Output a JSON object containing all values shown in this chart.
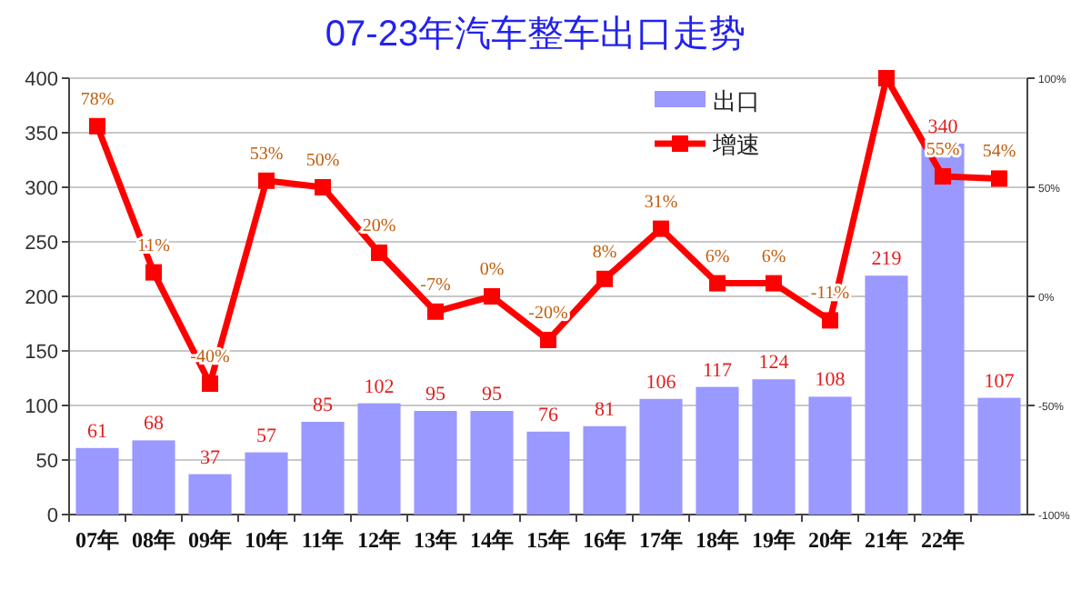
{
  "chart_data": {
    "type": "bar",
    "title": "07-23年汽车整车出口走势",
    "categories": [
      "07年",
      "08年",
      "09年",
      "10年",
      "11年",
      "12年",
      "13年",
      "14年",
      "15年",
      "16年",
      "17年",
      "18年",
      "19年",
      "20年",
      "21年",
      "22年",
      null
    ],
    "series": [
      {
        "name": "出口",
        "color": "#9999ff",
        "values": [
          61,
          68,
          37,
          57,
          85,
          102,
          95,
          95,
          76,
          81,
          106,
          117,
          124,
          108,
          219,
          340,
          107
        ],
        "value_labels": [
          "61",
          "68",
          "37",
          "57",
          "85",
          "102",
          "95",
          "95",
          "76",
          "81",
          "106",
          "117",
          "124",
          "108",
          "219",
          "340",
          "107"
        ]
      },
      {
        "name": "增速",
        "type": "line",
        "axis": "y2",
        "color": "#ff0000",
        "marker": "square",
        "line_style": "solid",
        "values": [
          78,
          11,
          -40,
          53,
          50,
          20,
          -7,
          0,
          -20,
          8,
          31,
          6,
          6,
          -11,
          100,
          55,
          54
        ],
        "value_labels": [
          "78%",
          "11%",
          "-40%",
          "53%",
          "50%",
          "20%",
          "-7%",
          "0%",
          "-20%",
          "8%",
          "31%",
          "6%",
          "6%",
          "-11%",
          null,
          "55%",
          "54%"
        ]
      }
    ],
    "ylim": [
      0,
      400
    ],
    "yticks": [
      0,
      50,
      100,
      150,
      200,
      250,
      300,
      350,
      400
    ],
    "y2lim": [
      -100,
      100
    ],
    "y2ticks": [
      {
        "value": -100,
        "label": "-100%"
      },
      {
        "value": -50,
        "label": "-50%"
      },
      {
        "value": 0,
        "label": "0%"
      },
      {
        "value": 50,
        "label": "50%"
      },
      {
        "value": 100,
        "label": "100%"
      }
    ],
    "grid": "y",
    "legend": "top right"
  }
}
